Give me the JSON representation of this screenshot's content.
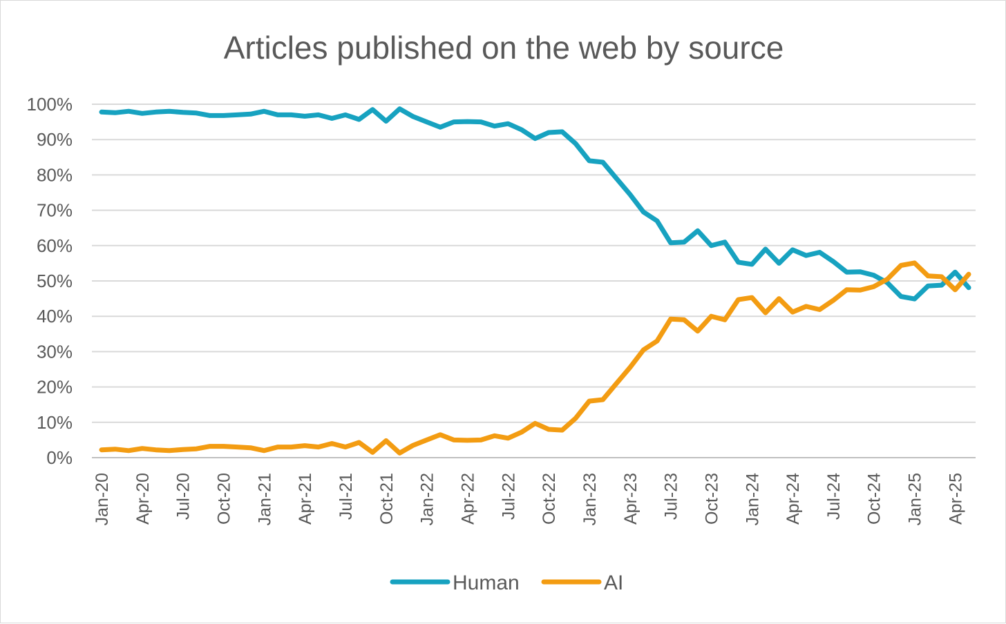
{
  "chart_data": {
    "type": "line",
    "title": "Articles published on the web by source",
    "xlabel": "",
    "ylabel": "",
    "ylim": [
      0,
      100
    ],
    "y_ticks": [
      "0%",
      "10%",
      "20%",
      "30%",
      "40%",
      "50%",
      "60%",
      "70%",
      "80%",
      "90%",
      "100%"
    ],
    "x_tick_labels": [
      "Jan-20",
      "Apr-20",
      "Jul-20",
      "Oct-20",
      "Jan-21",
      "Apr-21",
      "Jul-21",
      "Oct-21",
      "Jan-22",
      "Apr-22",
      "Jul-22",
      "Oct-22",
      "Jan-23",
      "Apr-23",
      "Jul-23",
      "Oct-23",
      "Jan-24",
      "Apr-24",
      "Jul-24",
      "Oct-24",
      "Jan-25",
      "Apr-25"
    ],
    "categories": [
      "Jan-20",
      "Feb-20",
      "Mar-20",
      "Apr-20",
      "May-20",
      "Jun-20",
      "Jul-20",
      "Aug-20",
      "Sep-20",
      "Oct-20",
      "Nov-20",
      "Dec-20",
      "Jan-21",
      "Feb-21",
      "Mar-21",
      "Apr-21",
      "May-21",
      "Jun-21",
      "Jul-21",
      "Aug-21",
      "Sep-21",
      "Oct-21",
      "Nov-21",
      "Dec-21",
      "Jan-22",
      "Feb-22",
      "Mar-22",
      "Apr-22",
      "May-22",
      "Jun-22",
      "Jul-22",
      "Aug-22",
      "Sep-22",
      "Oct-22",
      "Nov-22",
      "Dec-22",
      "Jan-23",
      "Feb-23",
      "Mar-23",
      "Apr-23",
      "May-23",
      "Jun-23",
      "Jul-23",
      "Aug-23",
      "Sep-23",
      "Oct-23",
      "Nov-23",
      "Dec-23",
      "Jan-24",
      "Feb-24",
      "Mar-24",
      "Apr-24",
      "May-24",
      "Jun-24",
      "Jul-24",
      "Aug-24",
      "Sep-24",
      "Oct-24",
      "Nov-24",
      "Dec-24",
      "Jan-25",
      "Feb-25",
      "Mar-25",
      "Apr-25",
      "May-25"
    ],
    "series": [
      {
        "name": "Human",
        "color": "#17a2c0",
        "values": [
          97.8,
          97.6,
          98.0,
          97.4,
          97.8,
          98.0,
          97.7,
          97.5,
          96.8,
          96.8,
          97.0,
          97.2,
          98.0,
          97.0,
          97.0,
          96.6,
          97.0,
          96.0,
          97.0,
          95.7,
          98.5,
          95.2,
          98.7,
          96.5,
          95.0,
          93.5,
          95.0,
          95.1,
          95.0,
          93.8,
          94.5,
          92.8,
          90.3,
          92.0,
          92.2,
          88.8,
          84.0,
          83.6,
          79.0,
          74.5,
          69.5,
          67.0,
          60.8,
          61.0,
          64.2,
          60.0,
          61.0,
          55.3,
          54.7,
          59.0,
          55.0,
          58.8,
          57.2,
          58.1,
          55.5,
          52.5,
          52.6,
          51.6,
          49.5,
          45.6,
          44.9,
          48.6,
          48.8,
          52.5,
          48.1
        ]
      },
      {
        "name": "AI",
        "color": "#f39c12",
        "values": [
          2.2,
          2.4,
          2.0,
          2.6,
          2.2,
          2.0,
          2.3,
          2.5,
          3.2,
          3.2,
          3.0,
          2.8,
          2.0,
          3.0,
          3.0,
          3.4,
          3.0,
          4.0,
          3.0,
          4.3,
          1.5,
          4.8,
          1.3,
          3.5,
          5.0,
          6.5,
          5.0,
          4.9,
          5.0,
          6.2,
          5.5,
          7.2,
          9.7,
          8.0,
          7.8,
          11.2,
          16.0,
          16.4,
          21.0,
          25.5,
          30.5,
          33.0,
          39.2,
          39.0,
          35.8,
          40.0,
          39.0,
          44.7,
          45.3,
          41.0,
          45.0,
          41.2,
          42.8,
          41.9,
          44.5,
          47.5,
          47.4,
          48.4,
          50.5,
          54.4,
          55.1,
          51.4,
          51.2,
          47.5,
          51.9
        ]
      }
    ],
    "grid": true,
    "legend_position": "bottom"
  }
}
